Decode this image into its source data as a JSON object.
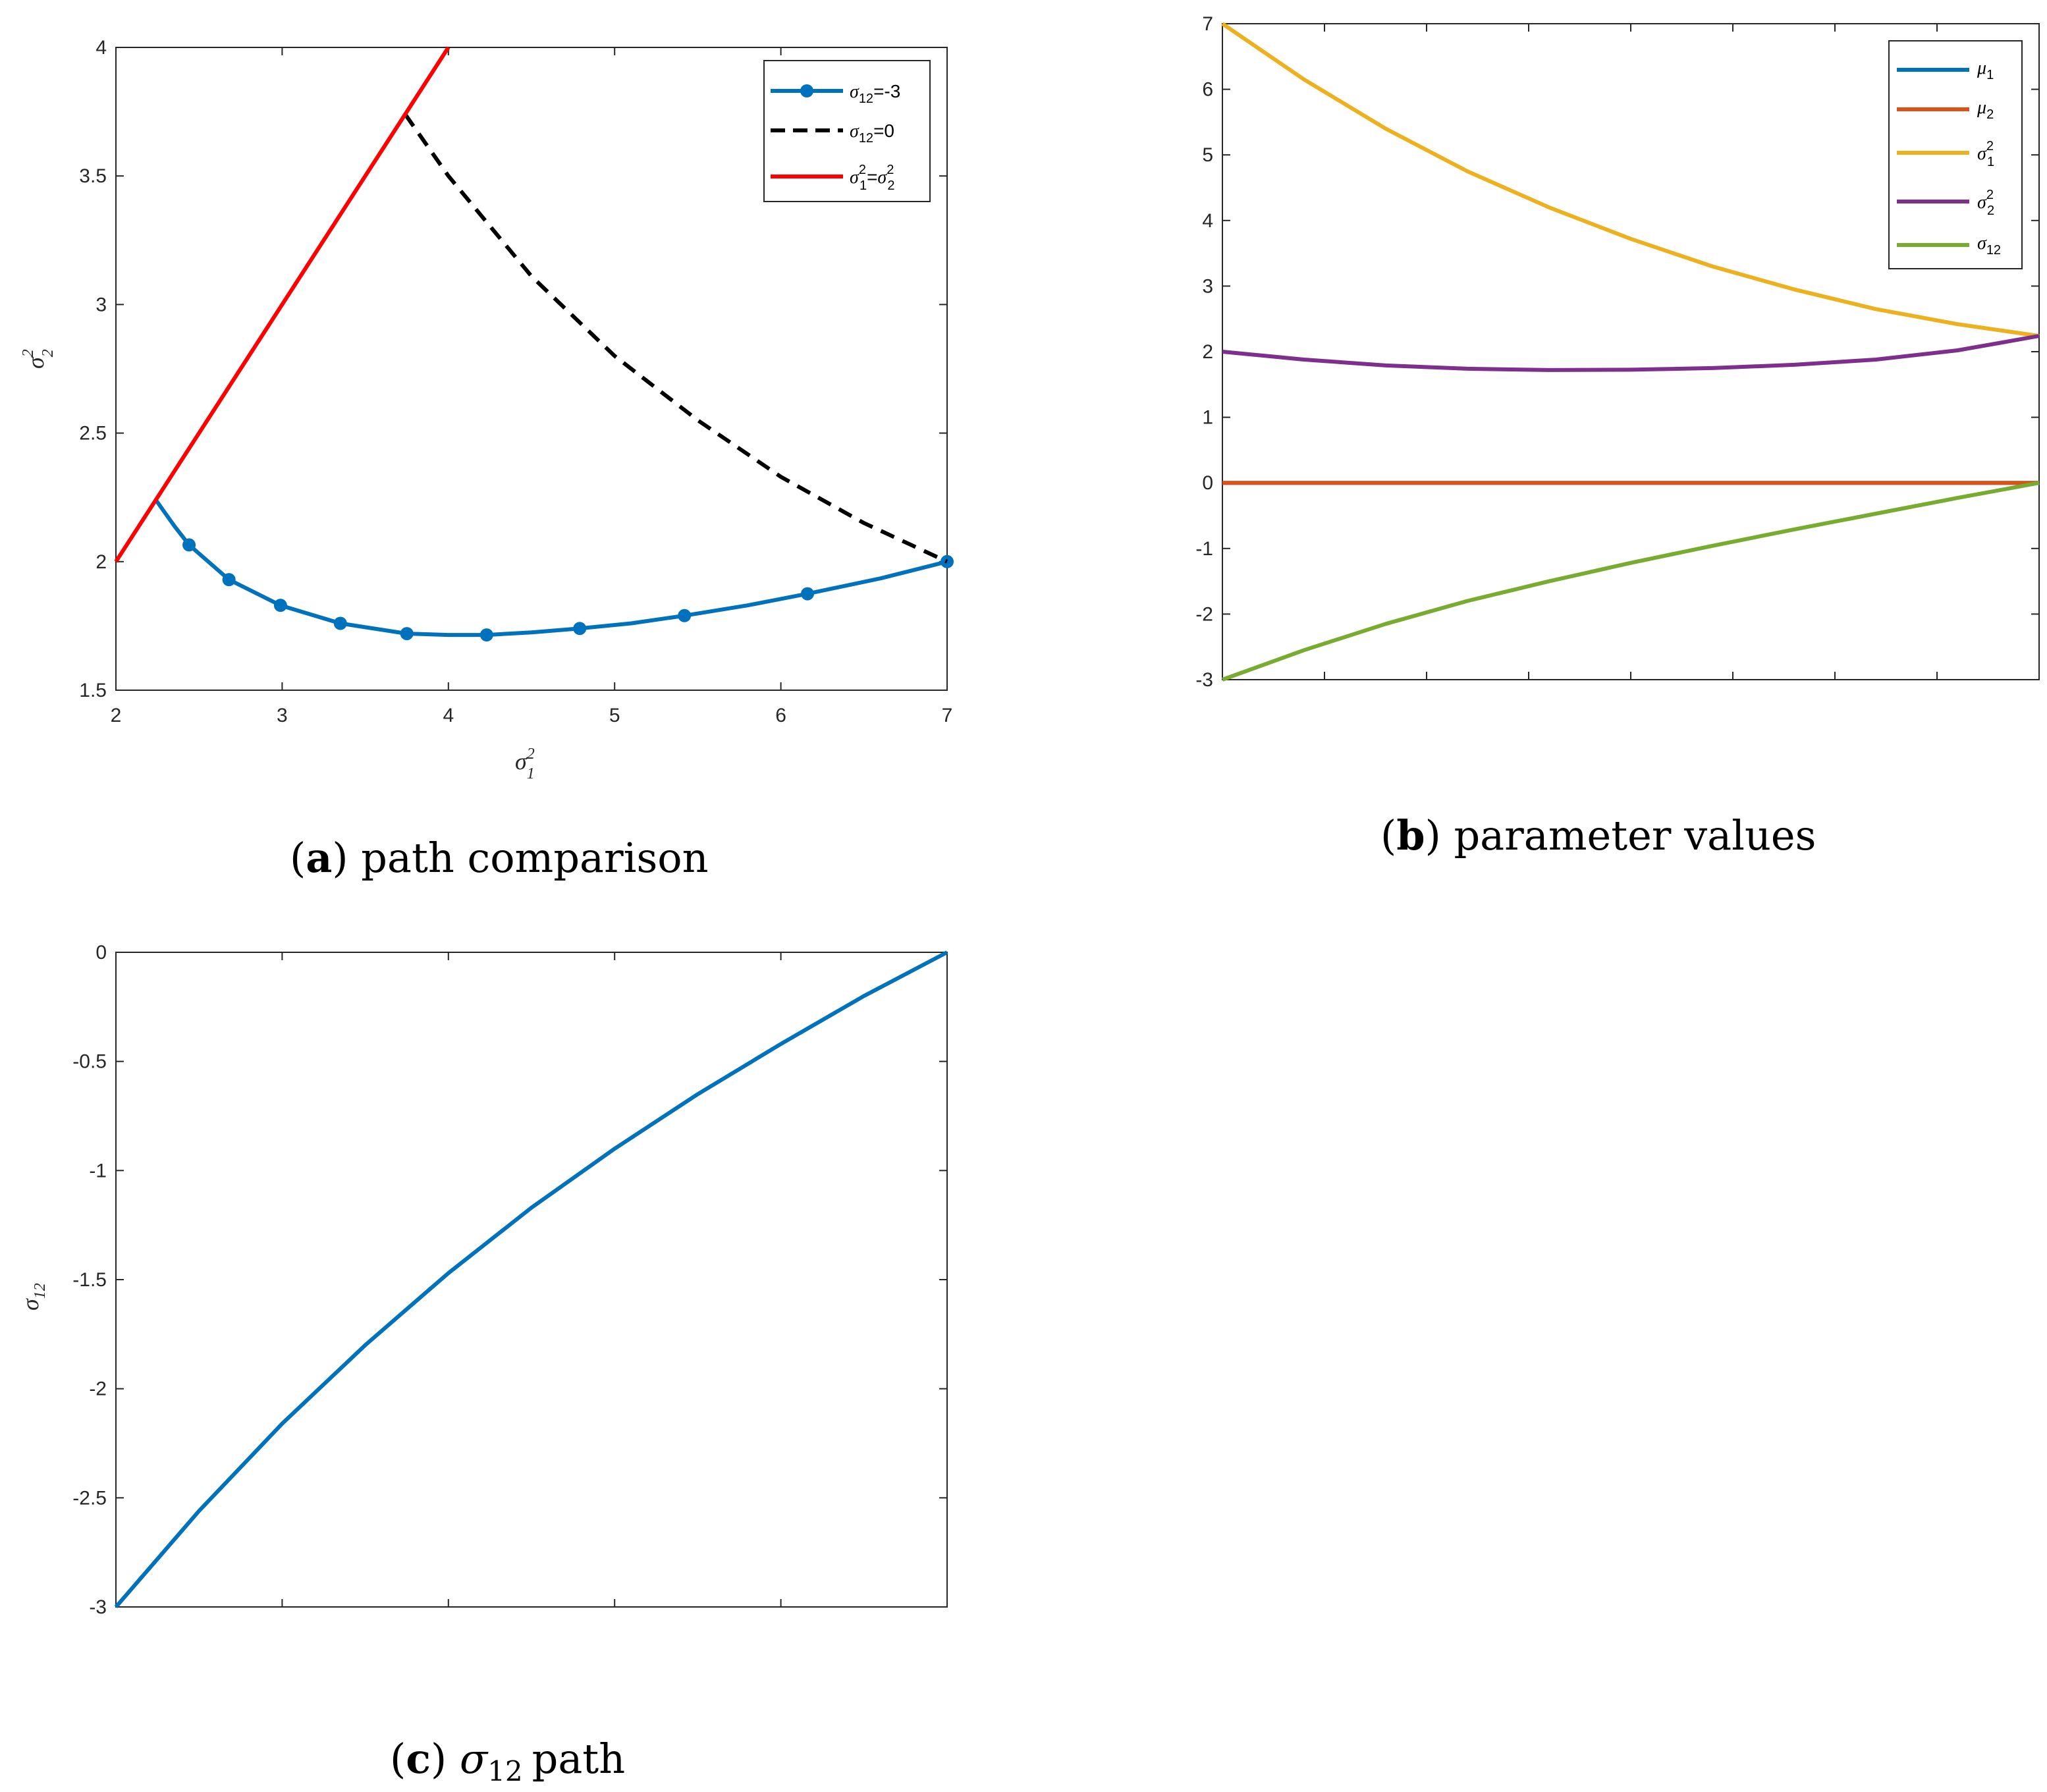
{
  "colors": {
    "blue": "#0072BD",
    "orange": "#D95319",
    "yellow": "#EDB120",
    "purple": "#7E2F8E",
    "green": "#77AC30",
    "red": "#FF0000",
    "black": "#000000"
  },
  "chart_data": [
    {
      "type": "line",
      "id": "a",
      "caption": {
        "letter": "a",
        "text": "path comparison"
      },
      "xlabel": {
        "base": "σ",
        "sup": "2",
        "sub": "1"
      },
      "ylabel": {
        "base": "σ",
        "sup": "2",
        "sub": "2"
      },
      "xlim": [
        2,
        7
      ],
      "ylim": [
        1.5,
        4
      ],
      "xticks": [
        "2",
        "3",
        "4",
        "5",
        "6",
        "7"
      ],
      "yticks": [
        "1.5",
        "2",
        "2.5",
        "3",
        "3.5",
        "4"
      ],
      "legend": {
        "position": "top-right",
        "entries": [
          {
            "base": "σ",
            "sub": "12",
            "suffix": "=-3"
          },
          {
            "base": "σ",
            "sub": "12",
            "suffix": "=0"
          },
          {
            "base": "σ",
            "sup": "2",
            "sub": "1",
            "mid": "=",
            "base2": "σ",
            "sup2": "2",
            "sub2": "2"
          }
        ]
      },
      "series": [
        {
          "name": "σ12=-3",
          "color": "blue",
          "style": "solid-markers",
          "points": [
            [
              2.24,
              2.24
            ],
            [
              2.35,
              2.14
            ],
            [
              2.44,
              2.065
            ],
            [
              2.68,
              1.93
            ],
            [
              2.99,
              1.83
            ],
            [
              3.35,
              1.76
            ],
            [
              3.75,
              1.72
            ],
            [
              4.0,
              1.715
            ],
            [
              4.23,
              1.715
            ],
            [
              4.5,
              1.725
            ],
            [
              4.79,
              1.74
            ],
            [
              5.1,
              1.76
            ],
            [
              5.42,
              1.79
            ],
            [
              5.8,
              1.83
            ],
            [
              6.16,
              1.875
            ],
            [
              6.6,
              1.935
            ],
            [
              7.0,
              2.0
            ]
          ],
          "markers": [
            [
              2.44,
              2.065
            ],
            [
              2.68,
              1.93
            ],
            [
              2.99,
              1.83
            ],
            [
              3.35,
              1.76
            ],
            [
              3.75,
              1.72
            ],
            [
              4.23,
              1.715
            ],
            [
              4.79,
              1.74
            ],
            [
              5.42,
              1.79
            ],
            [
              6.16,
              1.875
            ],
            [
              7.0,
              2.0
            ]
          ]
        },
        {
          "name": "σ12=0",
          "color": "black",
          "style": "dashed",
          "points": [
            [
              3.74,
              3.74
            ],
            [
              4.0,
              3.5
            ],
            [
              4.5,
              3.11
            ],
            [
              5.0,
              2.8
            ],
            [
              5.5,
              2.55
            ],
            [
              6.0,
              2.33
            ],
            [
              6.5,
              2.15
            ],
            [
              7.0,
              2.0
            ]
          ]
        },
        {
          "name": "σ1²=σ2²",
          "color": "red",
          "style": "solid",
          "points": [
            [
              2.0,
              2.0
            ],
            [
              4.0,
              4.0
            ]
          ]
        }
      ]
    },
    {
      "type": "line",
      "id": "b",
      "caption": {
        "letter": "b",
        "text": "parameter values"
      },
      "xlim": [
        0,
        1
      ],
      "ylim": [
        -3,
        7
      ],
      "xticks_count": 9,
      "yticks": [
        "-3",
        "-2",
        "-1",
        "0",
        "1",
        "2",
        "3",
        "4",
        "5",
        "6",
        "7"
      ],
      "legend": {
        "position": "top-right",
        "entries": [
          {
            "base": "μ",
            "sub": "1"
          },
          {
            "base": "μ",
            "sub": "2"
          },
          {
            "base": "σ",
            "sup": "2",
            "sub": "1"
          },
          {
            "base": "σ",
            "sup": "2",
            "sub": "2"
          },
          {
            "base": "σ",
            "sub": "12"
          }
        ]
      },
      "series": [
        {
          "name": "μ1",
          "color": "blue",
          "points": [
            [
              0,
              0
            ],
            [
              1,
              0
            ]
          ]
        },
        {
          "name": "μ2",
          "color": "orange",
          "points": [
            [
              0,
              0
            ],
            [
              1,
              0
            ]
          ]
        },
        {
          "name": "σ1²",
          "color": "yellow",
          "points": [
            [
              0,
              7.0
            ],
            [
              0.1,
              6.15
            ],
            [
              0.2,
              5.4
            ],
            [
              0.3,
              4.75
            ],
            [
              0.4,
              4.2
            ],
            [
              0.5,
              3.72
            ],
            [
              0.6,
              3.3
            ],
            [
              0.7,
              2.95
            ],
            [
              0.8,
              2.65
            ],
            [
              0.9,
              2.42
            ],
            [
              1.0,
              2.24
            ]
          ]
        },
        {
          "name": "σ2²",
          "color": "purple",
          "points": [
            [
              0,
              2.0
            ],
            [
              0.1,
              1.88
            ],
            [
              0.2,
              1.79
            ],
            [
              0.3,
              1.74
            ],
            [
              0.4,
              1.72
            ],
            [
              0.5,
              1.725
            ],
            [
              0.6,
              1.75
            ],
            [
              0.7,
              1.8
            ],
            [
              0.8,
              1.88
            ],
            [
              0.9,
              2.02
            ],
            [
              1.0,
              2.24
            ]
          ]
        },
        {
          "name": "σ12",
          "color": "green",
          "points": [
            [
              0,
              -3.0
            ],
            [
              0.1,
              -2.55
            ],
            [
              0.2,
              -2.15
            ],
            [
              0.3,
              -1.8
            ],
            [
              0.4,
              -1.5
            ],
            [
              0.5,
              -1.22
            ],
            [
              0.6,
              -0.96
            ],
            [
              0.7,
              -0.71
            ],
            [
              0.8,
              -0.47
            ],
            [
              0.9,
              -0.23
            ],
            [
              1.0,
              0.0
            ]
          ]
        }
      ]
    },
    {
      "type": "line",
      "id": "c",
      "caption": {
        "letter": "c",
        "base": "σ",
        "sub": "12",
        "text": "path"
      },
      "ylabel": {
        "base": "σ",
        "sub": "12"
      },
      "xlim": [
        0,
        1
      ],
      "ylim": [
        -3,
        0
      ],
      "xticks_count": 6,
      "yticks": [
        "-3",
        "-2.5",
        "-2",
        "-1.5",
        "-1",
        "-0.5",
        "0"
      ],
      "series": [
        {
          "name": "σ12",
          "color": "blue",
          "points": [
            [
              0,
              -3.0
            ],
            [
              0.1,
              -2.56
            ],
            [
              0.2,
              -2.16
            ],
            [
              0.3,
              -1.8
            ],
            [
              0.4,
              -1.47
            ],
            [
              0.5,
              -1.17
            ],
            [
              0.6,
              -0.9
            ],
            [
              0.7,
              -0.65
            ],
            [
              0.8,
              -0.42
            ],
            [
              0.9,
              -0.2
            ],
            [
              1.0,
              0.0
            ]
          ]
        }
      ]
    }
  ]
}
